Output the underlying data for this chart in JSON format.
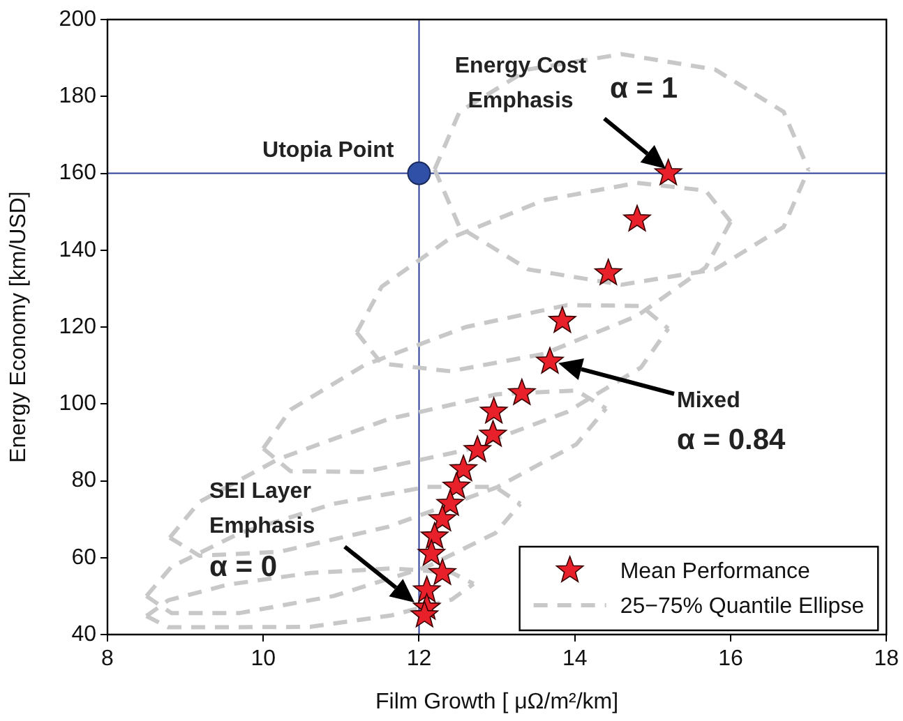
{
  "chart_data": {
    "type": "line",
    "xlabel": "Film Growth [ μΩ/m²/km]",
    "ylabel": "Energy Economy [km/USD]",
    "xlim": [
      8,
      18
    ],
    "xticks": [
      8,
      10,
      12,
      14,
      16,
      18
    ],
    "ylim": [
      40,
      200
    ],
    "yticks": [
      40,
      60,
      80,
      100,
      120,
      140,
      160,
      180,
      200
    ],
    "grid": false,
    "legend": "bottom right",
    "series": [
      {
        "name": "25−75% Quantile Ellipse",
        "color": "#c8c8c8",
        "marker": "none",
        "line_style": "dashed",
        "x": [
          12.2,
          12.52,
          13.4,
          14.6,
          15.8,
          16.68,
          17.0
        ],
        "values": [
          161,
          176,
          187,
          191,
          187,
          176,
          161
        ]
      },
      {
        "color": "#c8c8c8",
        "marker": "none",
        "line_style": "dashed",
        "x": [
          12.2,
          12.52,
          13.4,
          14.6,
          15.8,
          16.68,
          17.0
        ],
        "values": [
          161,
          146,
          135,
          131,
          135,
          146,
          161
        ]
      },
      {
        "color": "#c8c8c8",
        "marker": "none",
        "line_style": "dashed",
        "x": [
          11.2,
          11.52,
          12.4,
          13.6,
          14.8,
          15.68,
          16.0
        ],
        "values": [
          118.6,
          130.5,
          143.1,
          153,
          157.5,
          155.5,
          147.4
        ]
      },
      {
        "color": "#c8c8c8",
        "marker": "none",
        "line_style": "dashed",
        "x": [
          11.2,
          11.52,
          12.4,
          13.6,
          14.8,
          15.68,
          16.0
        ],
        "values": [
          118.6,
          110.5,
          108.5,
          113,
          122.9,
          135.5,
          147.4
        ]
      },
      {
        "color": "#c8c8c8",
        "marker": "none",
        "line_style": "dashed",
        "x": [
          10.0,
          10.35,
          11.3,
          12.6,
          13.9,
          14.85,
          15.2
        ],
        "values": [
          88.4,
          98.5,
          110.1,
          120,
          125.7,
          125.5,
          119.6
        ]
      },
      {
        "color": "#c8c8c8",
        "marker": "none",
        "line_style": "dashed",
        "x": [
          10.0,
          10.35,
          11.3,
          12.6,
          13.9,
          14.85,
          15.2
        ],
        "values": [
          88.4,
          82.5,
          82.3,
          88,
          97.9,
          109.5,
          119.6
        ]
      },
      {
        "color": "#c8c8c8",
        "marker": "none",
        "line_style": "dashed",
        "x": [
          8.8,
          9.18,
          10.2,
          11.6,
          13.0,
          14.02,
          14.4
        ],
        "values": [
          65.2,
          74.5,
          85.7,
          96,
          102.5,
          103.5,
          98.8
        ]
      },
      {
        "color": "#c8c8c8",
        "marker": "none",
        "line_style": "dashed",
        "x": [
          8.8,
          9.18,
          10.2,
          11.6,
          13.0,
          14.02,
          14.4
        ],
        "values": [
          65.2,
          60.5,
          61.5,
          68,
          78.3,
          89.5,
          98.8
        ]
      },
      {
        "color": "#c8c8c8",
        "marker": "none",
        "line_style": "dashed",
        "x": [
          8.5,
          8.82,
          9.7,
          10.9,
          12.1,
          12.98,
          13.3
        ],
        "values": [
          50,
          57.6,
          66.4,
          74,
          78.4,
          78.4,
          74
        ]
      },
      {
        "color": "#c8c8c8",
        "marker": "none",
        "line_style": "dashed",
        "x": [
          8.5,
          8.82,
          9.7,
          10.9,
          12.1,
          12.98,
          13.3
        ],
        "values": [
          50,
          45.6,
          45.6,
          50,
          57.6,
          66.4,
          74
        ]
      },
      {
        "color": "#c8c8c8",
        "marker": "none",
        "line_style": "dashed",
        "x": [
          8.5,
          8.78,
          9.55,
          10.6,
          11.65,
          12.42,
          12.7
        ],
        "values": [
          44.8,
          48.9,
          53,
          56,
          57.2,
          56.1,
          53.2
        ]
      },
      {
        "color": "#c8c8c8",
        "marker": "none",
        "line_style": "dashed",
        "x": [
          8.5,
          8.78,
          9.55,
          10.6,
          11.65,
          12.42,
          12.7
        ],
        "values": [
          44.8,
          41.9,
          41.9,
          42,
          45,
          49.1,
          53.2
        ]
      },
      {
        "name": "Mean Performance",
        "type": "scatter",
        "color": "#e8202a",
        "marker": "star",
        "x": [
          15.2,
          14.8,
          14.43,
          13.84,
          13.68,
          13.32,
          12.96,
          12.95,
          12.75,
          12.57,
          12.48,
          12.4,
          12.3,
          12.2,
          12.16,
          12.3,
          12.1,
          12.1,
          12.07
        ],
        "values": [
          160,
          148,
          134,
          121.6,
          111,
          102.8,
          98,
          92,
          88,
          83,
          78.5,
          74,
          70,
          65.5,
          61,
          56,
          51.5,
          47,
          45
        ]
      },
      {
        "type": "scatter",
        "color": "#3050a8",
        "marker": "circle",
        "x": [
          12
        ],
        "values": [
          160
        ]
      }
    ],
    "ref_lines": [
      {
        "axis": "x",
        "value": 12,
        "color": "#2b3f9a"
      },
      {
        "axis": "y",
        "value": 160,
        "color": "#2b3f9a"
      }
    ],
    "annotations": [
      {
        "text": "Utopia Point",
        "x": 12,
        "y": 160
      },
      "Energy Cost\nEmphasis",
      "α = 1",
      "Mixed\nα = 0.84",
      "SEI Layer\nEmphasis\nα = 0"
    ]
  }
}
